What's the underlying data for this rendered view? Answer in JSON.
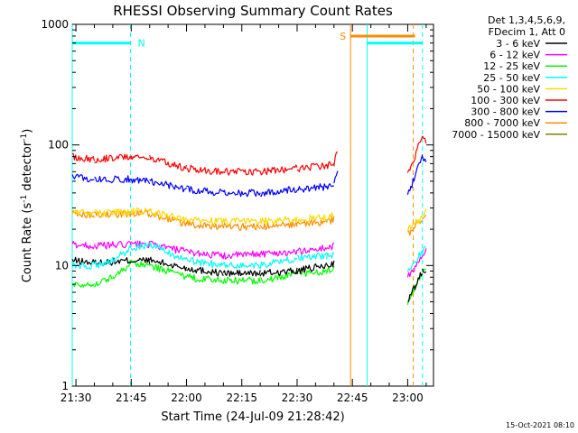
{
  "chart_data": {
    "type": "line",
    "title": "RHESSI Observing Summary Count Rates",
    "xlabel": "Start Time (24-Jul-09 21:28:42)",
    "ylabel_main": "Count Rate (s",
    "ylabel_sup1": "-1",
    "ylabel_mid": " detector",
    "ylabel_sup2": "-1",
    "ylabel_end": ")",
    "yscale": "log",
    "ylim": [
      1,
      1000
    ],
    "xlim_minutes": [
      -1.0,
      97.0
    ],
    "x_ticks": [
      {
        "label": "21:30",
        "m": 0
      },
      {
        "label": "21:45",
        "m": 15
      },
      {
        "label": "22:00",
        "m": 30
      },
      {
        "label": "22:15",
        "m": 45
      },
      {
        "label": "22:30",
        "m": 60
      },
      {
        "label": "22:45",
        "m": 75
      },
      {
        "label": "23:00",
        "m": 90
      }
    ],
    "y_ticks": [
      {
        "label": "1",
        "v": 1
      },
      {
        "label": "10",
        "v": 10
      },
      {
        "label": "100",
        "v": 100
      },
      {
        "label": "1000",
        "v": 1000
      }
    ],
    "legend_header": [
      "Det 1,3,4,5,6,9,",
      "FDecim 1, Att 0"
    ],
    "legend_placement": "right",
    "timestamp": "15-Oct-2021 08:10",
    "series": [
      {
        "name": "3 - 6 keV",
        "color": "#000000",
        "x": [
          -1,
          5,
          15,
          20,
          30,
          40,
          50,
          60,
          68,
          70,
          88,
          90,
          94,
          95
        ],
        "y": [
          11,
          10.5,
          11,
          11,
          9.5,
          8.6,
          8.6,
          9,
          10,
          10.5,
          null,
          5,
          9,
          9.5
        ]
      },
      {
        "name": "6 - 12 keV",
        "color": "#ff00ff",
        "x": [
          -1,
          5,
          15,
          20,
          30,
          40,
          50,
          60,
          68,
          70,
          88,
          90,
          94,
          95
        ],
        "y": [
          15,
          14.5,
          15,
          15,
          13,
          12,
          12.5,
          13,
          14,
          14.5,
          null,
          8,
          12,
          13
        ]
      },
      {
        "name": "12 - 25 keV",
        "color": "#00ff00",
        "x": [
          -1,
          5,
          10,
          15,
          20,
          30,
          40,
          50,
          60,
          68,
          70,
          88,
          90,
          94,
          95
        ],
        "y": [
          7,
          7,
          8,
          10.5,
          10,
          8,
          7.5,
          7.5,
          8.5,
          9,
          9.5,
          null,
          5,
          9,
          10
        ]
      },
      {
        "name": "25 - 50 keV",
        "color": "#00ffff",
        "x": [
          -1,
          5,
          10,
          15,
          20,
          30,
          40,
          50,
          60,
          68,
          70,
          88,
          90,
          94,
          95
        ],
        "y": [
          10,
          10,
          11,
          14,
          15,
          11,
          10,
          10,
          11.5,
          12,
          12.5,
          null,
          9,
          13,
          14
        ]
      },
      {
        "name": "50 - 100 keV",
        "color": "#ffd700",
        "x": [
          -1,
          5,
          15,
          20,
          30,
          40,
          50,
          60,
          68,
          70,
          88,
          90,
          94,
          95
        ],
        "y": [
          28,
          27,
          28,
          28,
          24,
          23,
          23.5,
          24,
          25,
          26,
          null,
          20,
          25,
          28
        ]
      },
      {
        "name": "100 - 300 keV",
        "color": "#ff0000",
        "x": [
          -1,
          5,
          15,
          20,
          30,
          40,
          50,
          60,
          68,
          70,
          71,
          88,
          90,
          94,
          95
        ],
        "y": [
          80,
          76,
          80,
          78,
          64,
          60,
          60,
          64,
          67,
          70,
          90,
          null,
          55,
          120,
          100
        ]
      },
      {
        "name": "300 - 800 keV",
        "color": "#0000ff",
        "x": [
          -1,
          5,
          15,
          20,
          30,
          40,
          50,
          60,
          68,
          70,
          71,
          88,
          90,
          94,
          95
        ],
        "y": [
          55,
          52,
          52,
          50,
          43,
          40,
          40,
          43,
          45,
          48,
          60,
          null,
          38,
          80,
          70
        ]
      },
      {
        "name": "800 - 7000 keV",
        "color": "#ff8c00",
        "x": [
          -1,
          5,
          15,
          20,
          30,
          40,
          50,
          60,
          68,
          70,
          88,
          90,
          94,
          95
        ],
        "y": [
          27,
          26,
          27,
          27,
          22,
          21,
          21,
          22,
          23,
          24,
          null,
          18,
          24,
          26
        ]
      },
      {
        "name": "7000 - 15000 keV",
        "color": "#808000",
        "x": [],
        "y": []
      }
    ],
    "annotations": {
      "night": [
        {
          "label": "N",
          "start_m": -1,
          "end_m": 14.8,
          "color": "#00ffff"
        },
        {
          "label": "",
          "start_m": 79,
          "end_m": 94,
          "color": "#00ffff"
        }
      ],
      "saa": [
        {
          "label": "S",
          "start_m": 74.5,
          "end_m": 92,
          "color": "#ff8c00"
        }
      ],
      "vertical_lines": [
        {
          "m": -1,
          "color": "#00ffff",
          "style": "solid"
        },
        {
          "m": 14.8,
          "color": "#00ffff",
          "style": "dashed"
        },
        {
          "m": 74.5,
          "color": "#ff8c00",
          "style": "solid"
        },
        {
          "m": 79,
          "color": "#00ffff",
          "style": "solid"
        },
        {
          "m": 91.5,
          "color": "#ff8c00",
          "style": "dashed"
        },
        {
          "m": 94,
          "color": "#00ffff",
          "style": "dashed"
        }
      ],
      "night_level": 700,
      "saa_level": 800
    }
  }
}
